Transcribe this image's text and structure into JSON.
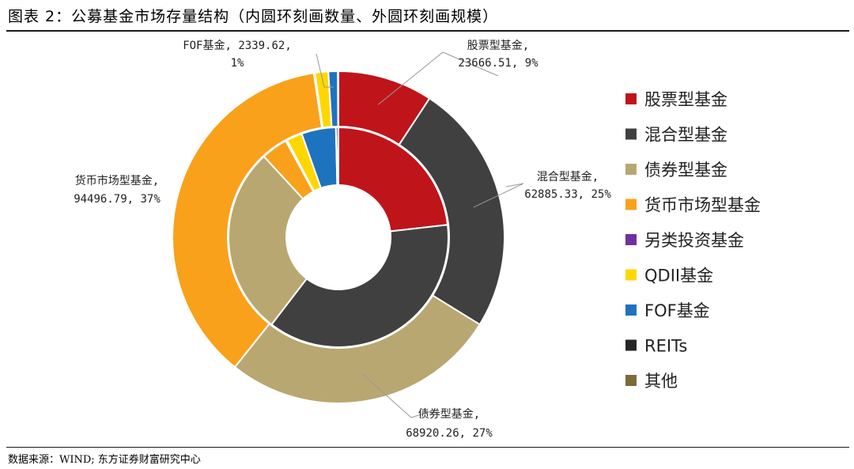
{
  "figure_title": "图表 2：公募基金市场存量结构（内圆环刻画数量、外圆环刻画规模）",
  "source": "数据来源：WIND; 东方证券财富研究中心",
  "chart_data": {
    "type": "pie",
    "subtype": "nested-donut",
    "legend_position": "right",
    "categories": [
      "股票型基金",
      "混合型基金",
      "债券型基金",
      "货币市场型基金",
      "另类投资基金",
      "QDII基金",
      "FOF基金",
      "REITs",
      "其他"
    ],
    "colors": [
      "#C0141B",
      "#404040",
      "#B9A771",
      "#F9A11B",
      "#7030A0",
      "#FFD700",
      "#1E73BE",
      "#262626",
      "#7E6A37"
    ],
    "series": [
      {
        "ring": "outer",
        "meaning": "规模",
        "values": [
          23666.51,
          62885.33,
          68920.26,
          94496.79,
          300,
          3300,
          2339.62,
          100,
          40
        ]
      },
      {
        "ring": "inner",
        "meaning": "数量",
        "values": [
          2200,
          3530,
          2630,
          370,
          20,
          220,
          480,
          30,
          5
        ]
      }
    ],
    "data_labels": [
      {
        "category": "股票型基金",
        "line1": "股票型基金,",
        "line2": "23666.51, 9%"
      },
      {
        "category": "混合型基金",
        "line1": "混合型基金,",
        "line2": "62885.33, 25%"
      },
      {
        "category": "债券型基金",
        "line1": "债券型基金,",
        "line2": "68920.26, 27%"
      },
      {
        "category": "货币市场型基金",
        "line1": "货币市场型基金,",
        "line2": "94496.79, 37%"
      },
      {
        "category": "FOF基金",
        "line1": "FOF基金, 2339.62,",
        "line2": "1%"
      }
    ]
  }
}
